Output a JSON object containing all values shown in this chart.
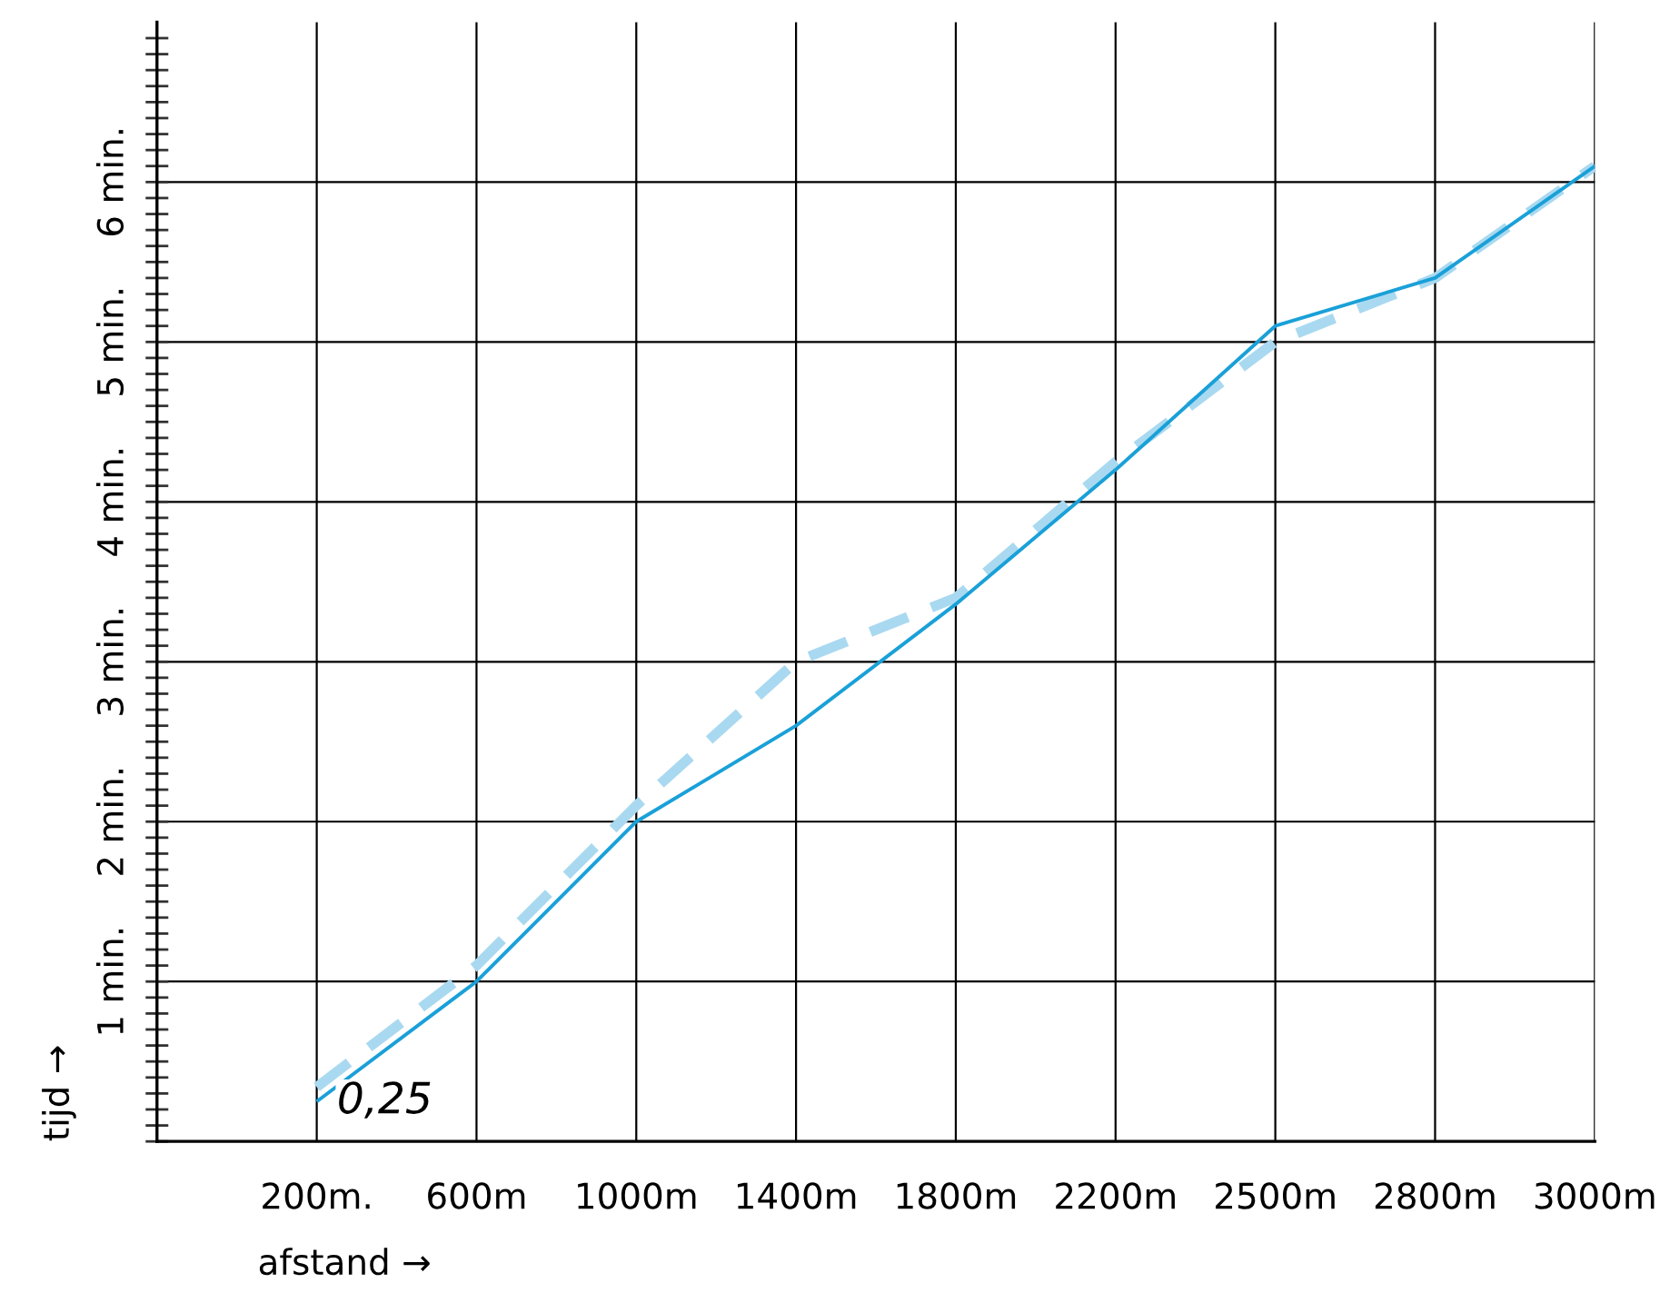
{
  "chart_data": {
    "type": "line",
    "xlabel": "afstand →",
    "ylabel": "tijd →",
    "categories": [
      null,
      "200m.",
      "600m",
      "1000m",
      "1400m",
      "1800m",
      "2200m",
      "2500m",
      "2800m",
      "3000m"
    ],
    "series": [
      {
        "color": "#a9d9f0",
        "line_style": "dashed",
        "values": [
          null,
          0.34,
          1.1,
          2.1,
          3.0,
          3.4,
          4.25,
          5.0,
          5.4,
          6.1
        ]
      },
      {
        "color": "#1aa0d8",
        "line_style": "solid",
        "values": [
          null,
          0.25,
          1.0,
          2.0,
          2.6,
          3.36,
          4.2,
          5.1,
          5.4,
          6.1
        ]
      }
    ],
    "ylim": [
      0,
      7
    ],
    "yticks": [
      {
        "value": 0,
        "label": null
      },
      {
        "value": 0.1,
        "label": null
      },
      {
        "value": 0.2,
        "label": null
      },
      {
        "value": 0.3,
        "label": null
      },
      {
        "value": 0.4,
        "label": null
      },
      {
        "value": 0.5,
        "label": null
      },
      {
        "value": 0.6,
        "label": null
      },
      {
        "value": 0.7,
        "label": null
      },
      {
        "value": 0.8,
        "label": null
      },
      {
        "value": 0.9,
        "label": null
      },
      {
        "value": 1,
        "label": "1 min."
      },
      {
        "value": 1.1,
        "label": null
      },
      {
        "value": 1.2,
        "label": null
      },
      {
        "value": 1.3,
        "label": null
      },
      {
        "value": 1.4,
        "label": null
      },
      {
        "value": 1.5,
        "label": null
      },
      {
        "value": 1.6,
        "label": null
      },
      {
        "value": 1.7,
        "label": null
      },
      {
        "value": 1.8,
        "label": null
      },
      {
        "value": 1.9,
        "label": null
      },
      {
        "value": 2,
        "label": "2 min."
      },
      {
        "value": 2.1,
        "label": null
      },
      {
        "value": 2.2,
        "label": null
      },
      {
        "value": 2.3,
        "label": null
      },
      {
        "value": 2.4,
        "label": null
      },
      {
        "value": 2.5,
        "label": null
      },
      {
        "value": 2.6,
        "label": null
      },
      {
        "value": 2.7,
        "label": null
      },
      {
        "value": 2.8,
        "label": null
      },
      {
        "value": 2.9,
        "label": null
      },
      {
        "value": 3,
        "label": "3 min."
      },
      {
        "value": 3.1,
        "label": null
      },
      {
        "value": 3.2,
        "label": null
      },
      {
        "value": 3.3,
        "label": null
      },
      {
        "value": 3.4,
        "label": null
      },
      {
        "value": 3.5,
        "label": null
      },
      {
        "value": 3.6,
        "label": null
      },
      {
        "value": 3.7,
        "label": null
      },
      {
        "value": 3.8,
        "label": null
      },
      {
        "value": 3.9,
        "label": null
      },
      {
        "value": 4,
        "label": "4 min."
      },
      {
        "value": 4.1,
        "label": null
      },
      {
        "value": 4.2,
        "label": null
      },
      {
        "value": 4.3,
        "label": null
      },
      {
        "value": 4.4,
        "label": null
      },
      {
        "value": 4.5,
        "label": null
      },
      {
        "value": 4.6,
        "label": null
      },
      {
        "value": 4.7,
        "label": null
      },
      {
        "value": 4.8,
        "label": null
      },
      {
        "value": 4.9,
        "label": null
      },
      {
        "value": 5,
        "label": "5 min."
      },
      {
        "value": 5.1,
        "label": null
      },
      {
        "value": 5.2,
        "label": null
      },
      {
        "value": 5.3,
        "label": null
      },
      {
        "value": 5.4,
        "label": null
      },
      {
        "value": 5.5,
        "label": null
      },
      {
        "value": 5.6,
        "label": null
      },
      {
        "value": 5.7,
        "label": null
      },
      {
        "value": 5.8,
        "label": null
      },
      {
        "value": 5.9,
        "label": null
      },
      {
        "value": 6,
        "label": "6 min."
      },
      {
        "value": 6.1,
        "label": null
      },
      {
        "value": 6.2,
        "label": null
      },
      {
        "value": 6.3,
        "label": null
      },
      {
        "value": 6.4,
        "label": null
      },
      {
        "value": 6.5,
        "label": null
      },
      {
        "value": 6.6,
        "label": null
      },
      {
        "value": 6.7,
        "label": null
      },
      {
        "value": 6.8,
        "label": null
      },
      {
        "value": 6.9,
        "label": null
      }
    ],
    "grid": true,
    "legend": false,
    "marker": "none",
    "annotations": [
      {
        "text": "0,25",
        "x": "200m.",
        "y": 0.25
      }
    ]
  }
}
